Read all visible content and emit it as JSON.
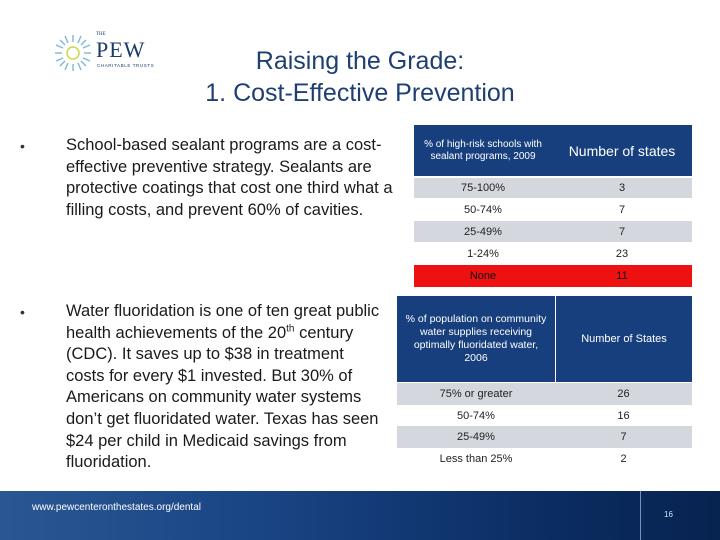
{
  "logo": {
    "prefix": "THE",
    "name": "PEW",
    "subtitle": "CHARITABLE TRUSTS"
  },
  "title": {
    "line1": "Raising the Grade:",
    "line2": "1. Cost-Effective Prevention"
  },
  "bullets": [
    {
      "symbol": "•",
      "lead": "School-based sealant programs",
      "body": " are a cost-effective preventive strategy. Sealants are protective coatings that cost one third what a filling costs, and prevent 60% of cavities."
    },
    {
      "symbol": "•",
      "lead": "Water fluoridation",
      "body_part1": " is one of ten great public health achievements of the 20",
      "superscript": "th",
      "body_part2": " century (CDC). It saves up to $38 in treatment costs for every $1 invested. But 30% of Americans on community water systems don’t get fluoridated water. Texas has seen $24 per child in Medicaid savings from fluoridation."
    }
  ],
  "sealant_table": {
    "headers": [
      "% of high-risk schools with sealant programs, 2009",
      "Number of states"
    ],
    "rows": [
      [
        "75-100%",
        "3"
      ],
      [
        "50-74%",
        "7"
      ],
      [
        "25-49%",
        "7"
      ],
      [
        "1-24%",
        "23"
      ],
      [
        "None",
        "11"
      ]
    ],
    "highlight_color": "#ee1111"
  },
  "fluoride_table": {
    "headers": [
      "% of population on community water supplies receiving optimally fluoridated water, 2006",
      "Number of States"
    ],
    "rows": [
      [
        "75% or greater",
        "26"
      ],
      [
        "50-74%",
        "16"
      ],
      [
        "25-49%",
        "7"
      ],
      [
        "Less than 25%",
        "2"
      ]
    ]
  },
  "footer": {
    "url": "www.pewcenteronthestates.org/dental",
    "page": "16"
  },
  "colors": {
    "header_blue": "#173f7e",
    "title_blue": "#1f3f73",
    "stripe_gray": "#d4d8de"
  }
}
